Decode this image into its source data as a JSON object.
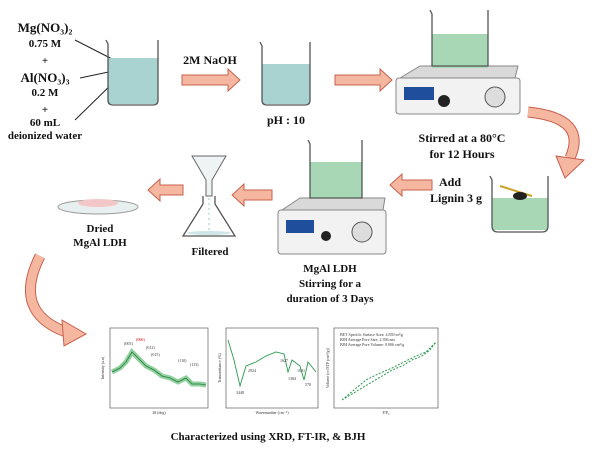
{
  "reagents": {
    "mg_salt": "Mg(NO₃)₂",
    "mg_conc": "0.75 M",
    "plus_1": "+",
    "al_salt": "Al(NO₃)₃",
    "al_conc": "0.2 M",
    "plus_2": "+",
    "water_volume": "60 mL",
    "water": "deionized water"
  },
  "steps": {
    "base": "2M NaOH",
    "ph": "pH : 10",
    "stir_1": [
      "Stirred at a 80°C",
      "for 12 Hours"
    ],
    "add": [
      "Add",
      "Lignin 3 g"
    ],
    "stir_2": [
      "MgAl LDH",
      "Stirring for a",
      "duration of 3 Days"
    ],
    "filter": "Filtered",
    "dry": [
      "Dried",
      "MgAl LDH"
    ]
  },
  "characterization": {
    "xrd": {
      "y_label": "Intensity (a.u)",
      "x_label": "2θ (deg)",
      "peaks": [
        "(003)",
        "(006)",
        "(012)",
        "(015)",
        "(110)",
        "(113)"
      ]
    },
    "ftir": {
      "y_label": "Transmittance (%)",
      "x_label": "Wavenumber (cm⁻¹)",
      "bands": [
        "3448",
        "2924",
        "1627",
        "1384",
        "1031",
        "570"
      ]
    },
    "bjh": {
      "y_label": "Volume (cc/STP (cm³/g))",
      "x_label": "P/P₀",
      "notes": [
        "BET Specific Surface Area: 4.839 m²/g",
        "BJH Average Pore Size: 2.396 nm",
        "BJH Average Pore Volume: 0.006 cm³/g"
      ]
    },
    "caption": "Characterized using XRD, FT-IR, & BJH"
  }
}
